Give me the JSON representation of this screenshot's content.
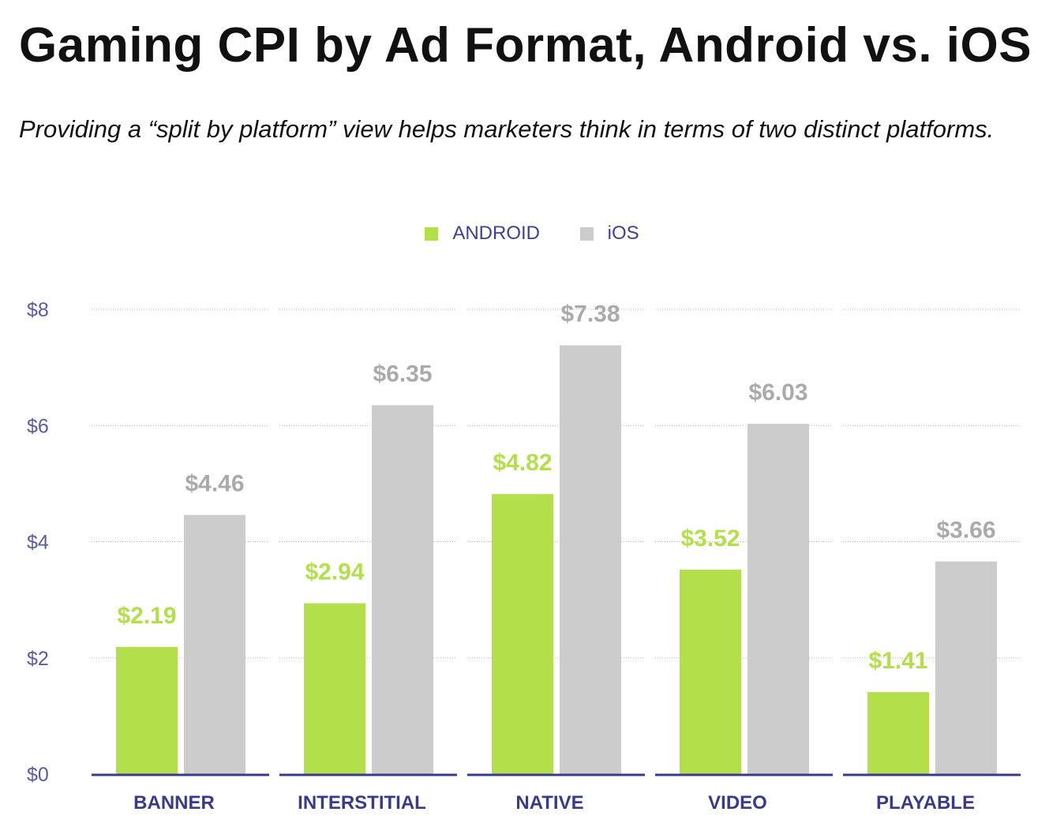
{
  "title": "Gaming CPI by Ad Format, Android vs. iOS",
  "subtitle": "Providing a “split by platform” view helps marketers think in terms of two distinct platforms.",
  "chart_data": {
    "type": "bar",
    "title": "Gaming CPI by Ad Format, Android vs. iOS",
    "xlabel": "",
    "ylabel": "",
    "ylim": [
      0,
      8
    ],
    "yticks": [
      0,
      2,
      4,
      6,
      8
    ],
    "ytick_labels": [
      "$0",
      "$2",
      "$4",
      "$6",
      "$8"
    ],
    "grid": true,
    "legend_position": "top-center",
    "categories": [
      "BANNER",
      "INTERSTITIAL",
      "NATIVE",
      "VIDEO",
      "PLAYABLE"
    ],
    "series": [
      {
        "name": "ANDROID",
        "color": "#b3e04a",
        "values": [
          2.19,
          2.94,
          4.82,
          3.52,
          1.41
        ],
        "labels": [
          "$2.19",
          "$2.94",
          "$4.82",
          "$3.52",
          "$1.41"
        ]
      },
      {
        "name": "iOS",
        "color": "#cccccc",
        "label_color": "#aaaaaa",
        "values": [
          4.46,
          6.35,
          7.38,
          6.03,
          3.66
        ],
        "labels": [
          "$4.46",
          "$6.35",
          "$7.38",
          "$6.03",
          "$3.66"
        ]
      }
    ]
  },
  "colors": {
    "axis": "#3a3a8c",
    "tick": "#5a5aaa",
    "grid": "#bbbbbb"
  }
}
